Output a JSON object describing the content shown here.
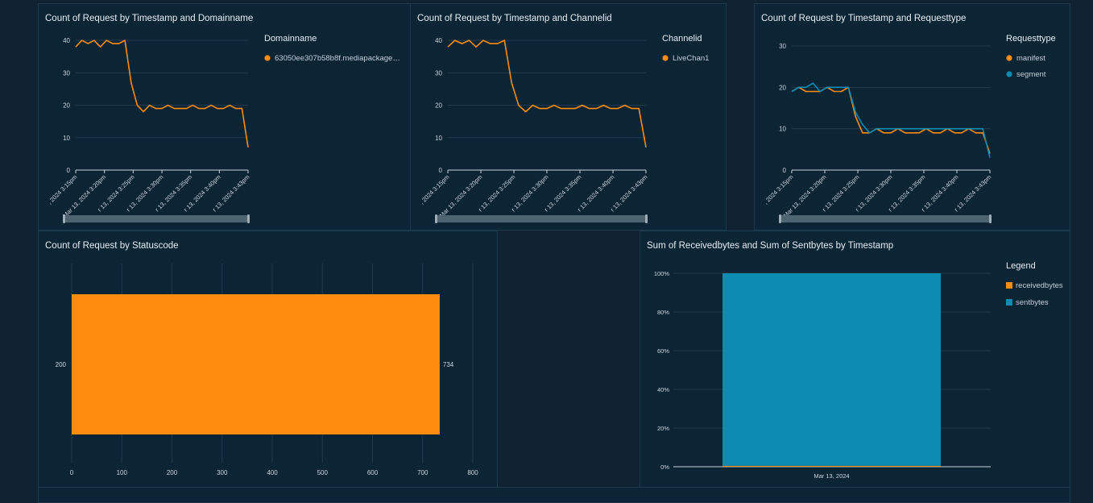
{
  "colors": {
    "orange": "#ff8b0f",
    "blue": "#0d8bb3",
    "grid": "#1f3c4f",
    "axis": "#c9d3db",
    "scrollbar": "#4e6470"
  },
  "panels": {
    "domain": {
      "title": "Count of Request by Timestamp and Domainname",
      "legend_title": "Domainname",
      "legend_items": [
        "63050ee307b58b8f.mediapackage…"
      ]
    },
    "channel": {
      "title": "Count of Request by Timestamp and Channelid",
      "legend_title": "Channelid",
      "legend_items": [
        "LiveChan1"
      ]
    },
    "reqtype": {
      "title": "Count of Request by Timestamp and Requesttype",
      "legend_title": "Requesttype",
      "legend_items": [
        "manifest",
        "segment"
      ]
    },
    "status": {
      "title": "Count of Request by Statuscode"
    },
    "bytes": {
      "title": "Sum of Receivedbytes and Sum of Sentbytes by Timestamp",
      "legend_title": "Legend",
      "legend_items": [
        "receivedbytes",
        "sentbytes"
      ]
    }
  },
  "chart_data": [
    {
      "id": "domain",
      "type": "line",
      "title": "Count of Request by Timestamp and Domainname",
      "x_ticks": [
        ", 2024 3:15pm",
        "Mar 13, 2024 3:20pm",
        "r 13, 2024 3:25pm",
        "r 13, 2024 3:30pm",
        "r 13, 2024 3:35pm",
        "r 13, 2024 3:40pm",
        "r 13, 2024 3:43pm"
      ],
      "ylim": [
        0,
        45
      ],
      "y_ticks": [
        0,
        10,
        20,
        30,
        40
      ],
      "series": [
        {
          "name": "63050ee307b58b8f.mediapackage…",
          "color": "#ff8b0f",
          "values": [
            38,
            40,
            39,
            40,
            38,
            40,
            39,
            39,
            40,
            27,
            20,
            18,
            20,
            19,
            19,
            20,
            19,
            19,
            19,
            20,
            19,
            19,
            20,
            19,
            19,
            20,
            19,
            19,
            7
          ]
        }
      ]
    },
    {
      "id": "channel",
      "type": "line",
      "title": "Count of Request by Timestamp and Channelid",
      "x_ticks": [
        ", 2024 3:15pm",
        "Mar 13, 2024 3:20pm",
        "r 13, 2024 3:25pm",
        "r 13, 2024 3:30pm",
        "r 13, 2024 3:35pm",
        "r 13, 2024 3:40pm",
        "r 13, 2024 3:43pm"
      ],
      "ylim": [
        0,
        45
      ],
      "y_ticks": [
        0,
        10,
        20,
        30,
        40
      ],
      "series": [
        {
          "name": "LiveChan1",
          "color": "#ff8b0f",
          "values": [
            38,
            40,
            39,
            40,
            38,
            40,
            39,
            39,
            40,
            27,
            20,
            18,
            20,
            19,
            19,
            20,
            19,
            19,
            19,
            20,
            19,
            19,
            20,
            19,
            19,
            20,
            19,
            19,
            7
          ]
        }
      ]
    },
    {
      "id": "reqtype",
      "type": "line",
      "title": "Count of Request by Timestamp and Requesttype",
      "x_ticks": [
        ", 2024 3:15pm",
        "Mar 13, 2024 3:20pm",
        "r 13, 2024 3:25pm",
        "r 13, 2024 3:30pm",
        "r 13, 2024 3:35pm",
        "r 13, 2024 3:40pm",
        "r 13, 2024 3:43pm"
      ],
      "ylim": [
        0,
        30
      ],
      "y_ticks": [
        0,
        10,
        20,
        30
      ],
      "series": [
        {
          "name": "manifest",
          "color": "#ff8b0f",
          "values": [
            19,
            20,
            19,
            19,
            19,
            20,
            19,
            19,
            20,
            13,
            9,
            9,
            10,
            9,
            9,
            10,
            9,
            9,
            9,
            10,
            9,
            9,
            10,
            9,
            9,
            10,
            9,
            9,
            4
          ]
        },
        {
          "name": "segment",
          "color": "#0d8bb3",
          "values": [
            19,
            20,
            20,
            21,
            19,
            20,
            20,
            20,
            20,
            14,
            11,
            9,
            10,
            10,
            10,
            10,
            10,
            10,
            10,
            10,
            10,
            10,
            10,
            10,
            10,
            10,
            10,
            10,
            3
          ]
        }
      ]
    },
    {
      "id": "status",
      "type": "bar",
      "orientation": "horizontal",
      "title": "Count of Request by Statuscode",
      "categories": [
        "200"
      ],
      "values": [
        734
      ],
      "xlim": [
        0,
        800
      ],
      "x_ticks": [
        0,
        100,
        200,
        300,
        400,
        500,
        600,
        700,
        800
      ],
      "color": "#ff8b0f"
    },
    {
      "id": "bytes",
      "type": "bar",
      "stacked_percent": true,
      "title": "Sum of Receivedbytes and Sum of Sentbytes by Timestamp",
      "categories": [
        "Mar 13, 2024"
      ],
      "y_ticks": [
        "0%",
        "20%",
        "40%",
        "60%",
        "80%",
        "100%"
      ],
      "series": [
        {
          "name": "receivedbytes",
          "color": "#ff8b0f",
          "values": [
            0.5
          ]
        },
        {
          "name": "sentbytes",
          "color": "#0d8bb3",
          "values": [
            99.5
          ]
        }
      ]
    }
  ]
}
